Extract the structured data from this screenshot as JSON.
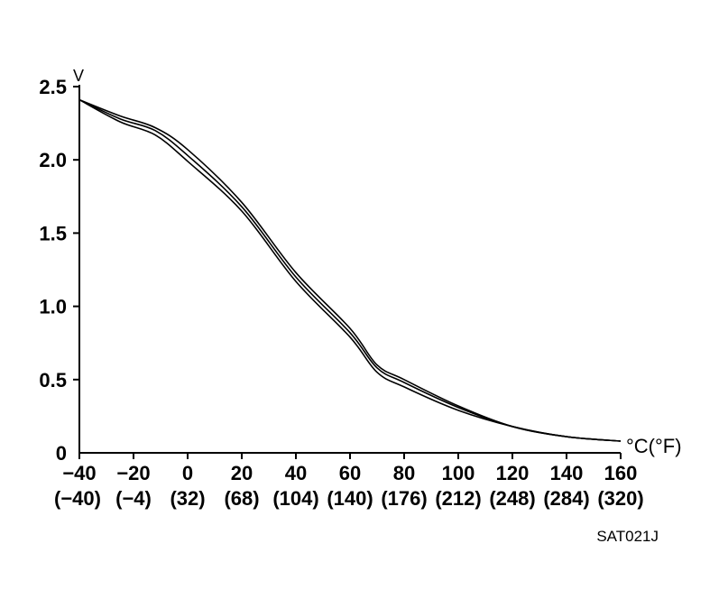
{
  "chart_data": {
    "type": "line",
    "ylabel": "V",
    "xlabel": "°C(°F)",
    "xlim": [
      -40,
      160
    ],
    "ylim": [
      0,
      2.5
    ],
    "x_ticks": [
      {
        "c": "−40",
        "f": "(−40)"
      },
      {
        "c": "−20",
        "f": "(−4)"
      },
      {
        "c": "0",
        "f": "(32)"
      },
      {
        "c": "20",
        "f": "(68)"
      },
      {
        "c": "40",
        "f": "(104)"
      },
      {
        "c": "60",
        "f": "(140)"
      },
      {
        "c": "80",
        "f": "(176)"
      },
      {
        "c": "100",
        "f": "(212)"
      },
      {
        "c": "120",
        "f": "(248)"
      },
      {
        "c": "140",
        "f": "(284)"
      },
      {
        "c": "160",
        "f": "(320)"
      }
    ],
    "y_ticks": [
      "0",
      "0.5",
      "1.0",
      "1.5",
      "2.0",
      "2.5"
    ],
    "grid": false,
    "series": [
      {
        "x": [
          -40,
          -25,
          -12,
          0,
          20,
          40,
          60,
          70,
          80,
          100,
          120,
          140,
          160
        ],
        "y": [
          2.41,
          2.3,
          2.22,
          2.07,
          1.71,
          1.23,
          0.85,
          0.6,
          0.5,
          0.32,
          0.18,
          0.11,
          0.08
        ]
      },
      {
        "x": [
          -40,
          -25,
          -12,
          0,
          20,
          40,
          60,
          70,
          80,
          100,
          120,
          140,
          160
        ],
        "y": [
          2.41,
          2.28,
          2.2,
          2.03,
          1.68,
          1.2,
          0.82,
          0.58,
          0.48,
          0.31,
          0.18,
          0.11,
          0.08
        ]
      },
      {
        "x": [
          -40,
          -25,
          -12,
          0,
          20,
          40,
          60,
          70,
          80,
          100,
          120,
          140,
          160
        ],
        "y": [
          2.41,
          2.26,
          2.17,
          1.99,
          1.65,
          1.17,
          0.79,
          0.55,
          0.45,
          0.29,
          0.18,
          0.11,
          0.08
        ]
      }
    ]
  },
  "figure_id": "SAT021J"
}
